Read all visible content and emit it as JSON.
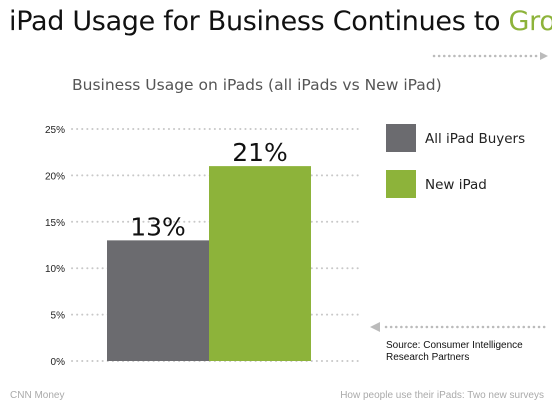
{
  "headline": {
    "prefix": "iPad Usage for Business Continues to ",
    "accent": "Grow"
  },
  "colors": {
    "accent_green": "#8db33a",
    "bar_gray": "#6b6b6f",
    "grid": "#c8c8c8"
  },
  "chart_data": {
    "type": "bar",
    "title": "Business Usage on iPads (all iPads vs New iPad)",
    "categories": [
      "All iPad Buyers",
      "New iPad"
    ],
    "values": [
      13,
      21
    ],
    "data_labels": [
      "13%",
      "21%"
    ],
    "colors": [
      "#6b6b6f",
      "#8db33a"
    ],
    "ylim": [
      0,
      25
    ],
    "yticks": [
      0,
      5,
      10,
      15,
      20,
      25
    ],
    "ytick_labels": [
      "0%",
      "5%",
      "10%",
      "15%",
      "20%",
      "25%"
    ],
    "grid": true,
    "legend": [
      {
        "label": "All iPad Buyers",
        "color": "#6b6b6f"
      },
      {
        "label": "New iPad",
        "color": "#8db33a"
      }
    ],
    "legend_position": "right"
  },
  "source": "Source: Consumer Intelligence Research Partners",
  "footer": {
    "left": "CNN Money",
    "right": "How people use their iPads: Two new surveys"
  }
}
